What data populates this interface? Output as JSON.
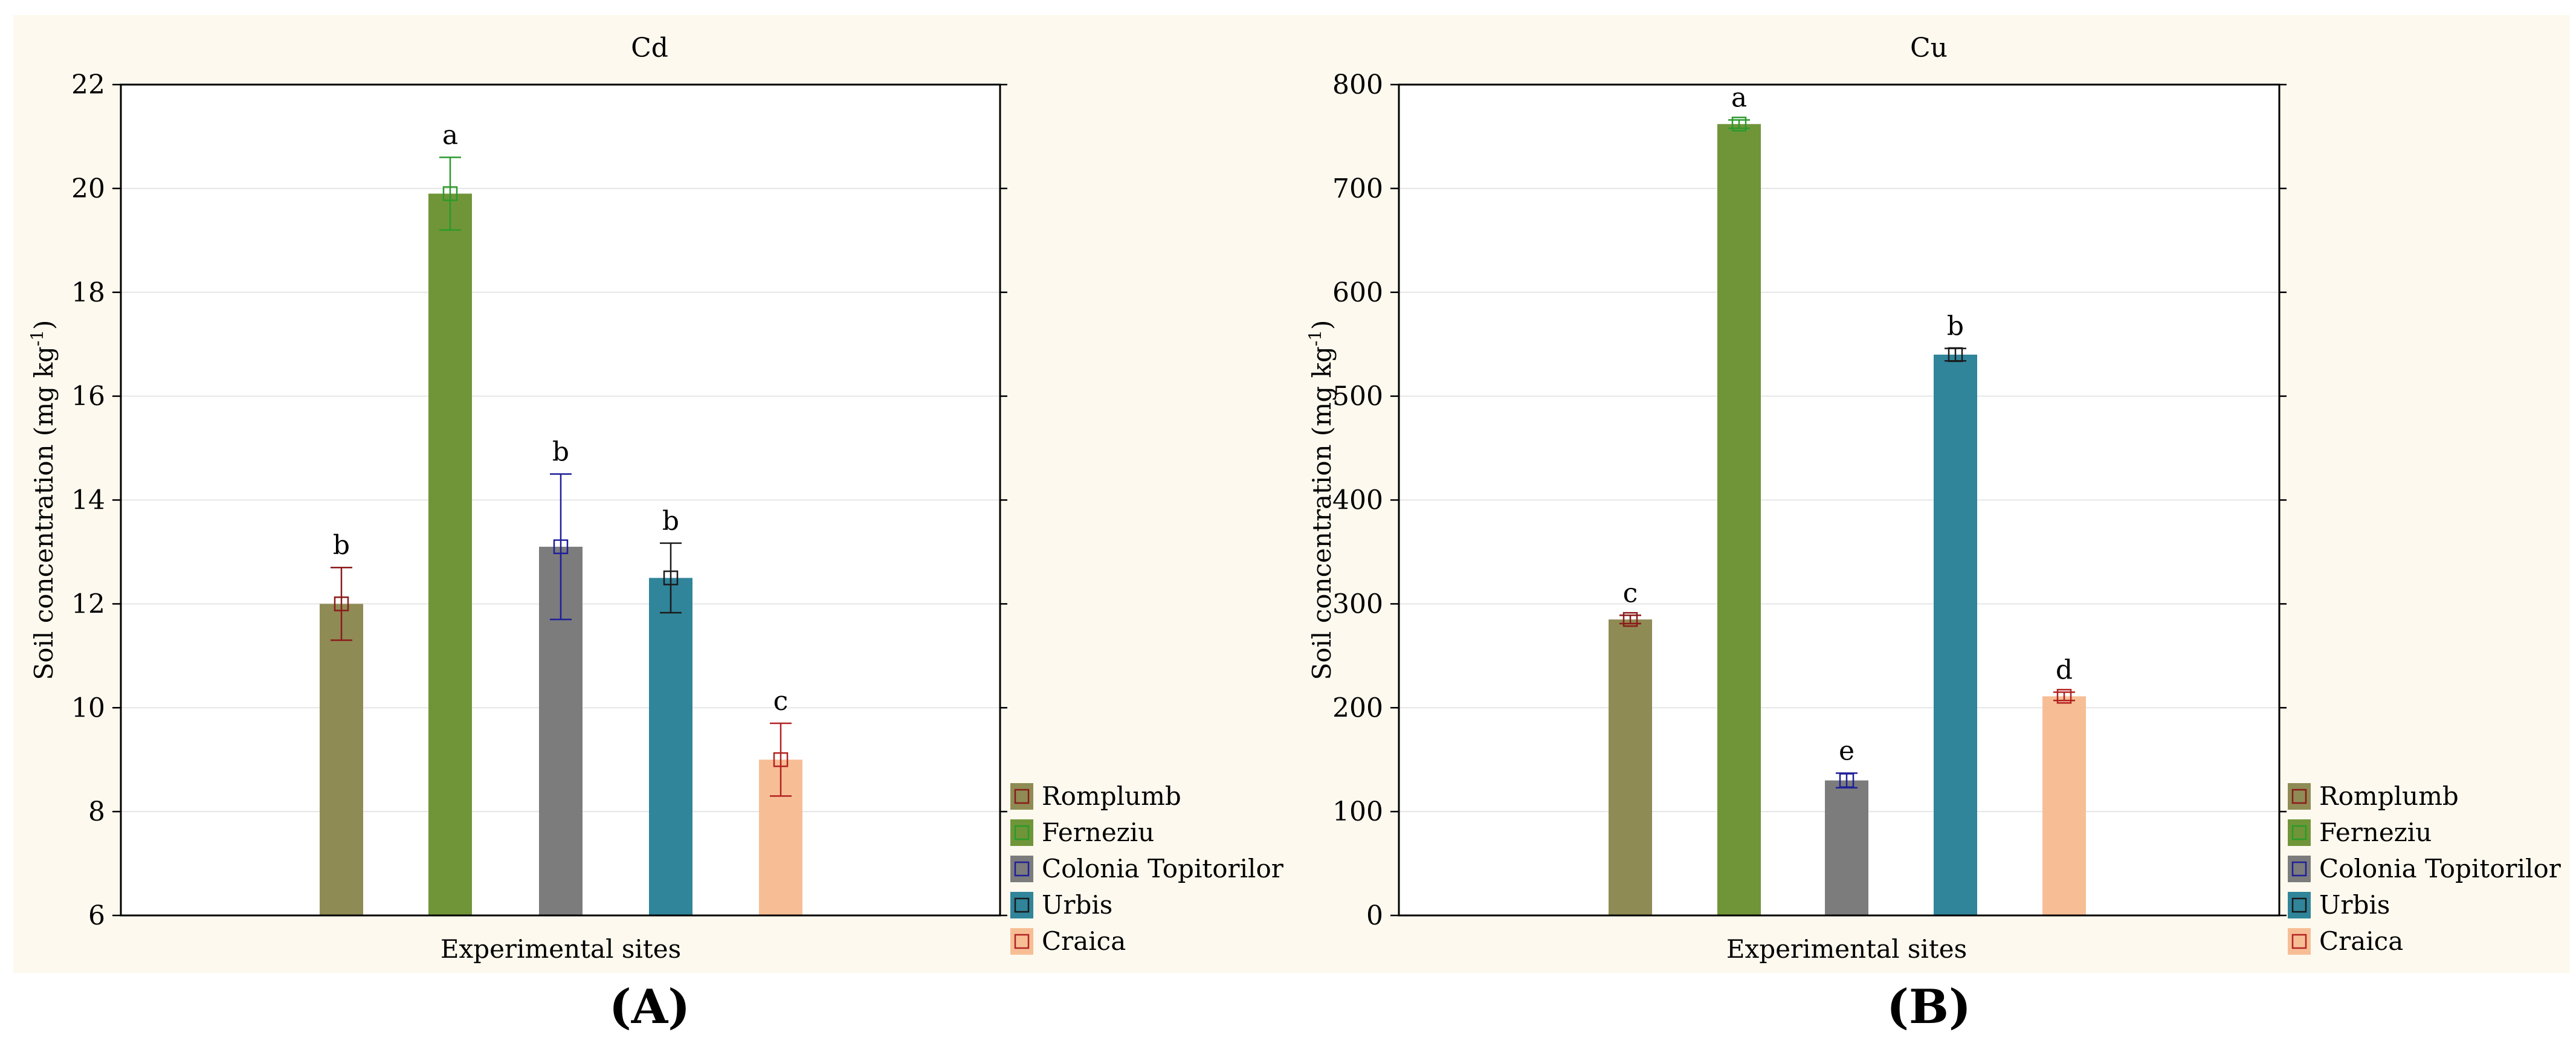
{
  "figure": {
    "panel_bg": "#fdf9ee",
    "bar_colors": [
      "#8f8b55",
      "#709539",
      "#7c7c7c",
      "#30859a",
      "#f7be95"
    ],
    "marker_colors": [
      "#8b1a1a",
      "#2b9a2b",
      "#1f1f9a",
      "#1a1a1a",
      "#b22222"
    ],
    "legend": [
      "Romplumb",
      "Ferneziu",
      "Colonia Topitorilor",
      "Urbis",
      "Craica"
    ]
  },
  "chart_data": [
    {
      "type": "bar",
      "panel_label": "(A)",
      "title": "Cd",
      "xlabel": "Experimental sites",
      "ylabel": "Soil concentration (mg kg",
      "ylabel_sup": "-1",
      "ylabel_end": ")",
      "ylim": [
        6,
        22
      ],
      "yticks": [
        6,
        8,
        10,
        12,
        14,
        16,
        18,
        20,
        22
      ],
      "grid": true,
      "categories": [
        "Romplumb",
        "Ferneziu",
        "Colonia Topitorilor",
        "Urbis",
        "Craica"
      ],
      "values": [
        12.0,
        19.9,
        13.1,
        12.5,
        9.0
      ],
      "errors": [
        0.7,
        0.7,
        1.4,
        0.67,
        0.7
      ],
      "letters": [
        "b",
        "a",
        "b",
        "b",
        "c"
      ]
    },
    {
      "type": "bar",
      "panel_label": "(B)",
      "title": "Cu",
      "xlabel": "Experimental sites",
      "ylabel": "Soil concentration (mg kg",
      "ylabel_sup": "-1",
      "ylabel_end": ")",
      "ylim": [
        0,
        800
      ],
      "yticks": [
        0,
        100,
        200,
        300,
        400,
        500,
        600,
        700,
        800
      ],
      "grid": true,
      "categories": [
        "Romplumb",
        "Ferneziu",
        "Colonia Topitorilor",
        "Urbis",
        "Craica"
      ],
      "values": [
        285,
        762,
        130,
        540,
        211
      ],
      "errors": [
        4,
        4,
        7,
        6,
        4
      ],
      "letters": [
        "c",
        "a",
        "e",
        "b",
        "d"
      ]
    }
  ]
}
